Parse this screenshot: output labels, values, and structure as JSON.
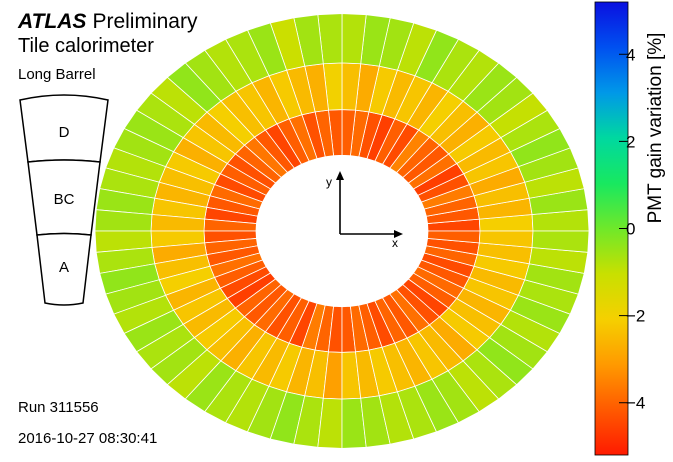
{
  "header": {
    "experiment": "ATLAS",
    "status": "Preliminary",
    "subtitle": "Tile calorimeter",
    "partition": "Long Barrel"
  },
  "run": {
    "label": "Run 311556",
    "timestamp": "2016-10-27 08:30:41"
  },
  "schematic": {
    "layers": [
      "D",
      "BC",
      "A"
    ]
  },
  "axes_indicator": {
    "x_label": "x",
    "y_label": "y"
  },
  "colorbar": {
    "title": "PMT gain variation [%]",
    "range": [
      -5.2,
      5.2
    ],
    "ticks": [
      4,
      2,
      0,
      -2,
      -4
    ],
    "tick_labels": [
      "4",
      "2",
      "0",
      "−2",
      "−4"
    ],
    "palette": [
      "#ff1a00",
      "#ff5a00",
      "#ff9a00",
      "#f5d000",
      "#c8e000",
      "#6fe82a",
      "#18e860",
      "#00d8a0",
      "#0098e8",
      "#0050f0",
      "#0a10e0"
    ]
  },
  "chart_data": {
    "type": "heatmap",
    "title": "",
    "value_label": "PMT gain variation [%]",
    "modules": 64,
    "layers": [
      "A",
      "BC",
      "D"
    ],
    "series": [
      {
        "name": "A",
        "values": [
          -4.5,
          -4.2,
          -4.0,
          -3.6,
          -4.3,
          -4.6,
          -3.8,
          -4.2,
          -4.0,
          -3.5,
          -4.4,
          -4.1,
          -4.6,
          -4.3,
          -3.9,
          -4.1,
          -4.2,
          -4.0,
          -4.3,
          -3.8,
          -4.1,
          -4.5,
          -4.2,
          -3.7,
          -4.0,
          -4.3,
          -4.1,
          -4.4,
          -3.9,
          -4.2,
          -4.5,
          -4.0,
          -4.3,
          -4.0,
          -4.2,
          -3.8,
          -4.1,
          -4.4,
          -4.6,
          -4.0,
          -4.2,
          -3.9,
          -4.3,
          -4.1,
          -4.5,
          -3.6,
          -4.0,
          -4.3,
          -4.2,
          -3.9,
          -4.1,
          -4.4,
          -4.0,
          -4.2,
          -3.8,
          -4.3,
          -4.5,
          -4.1,
          -3.9,
          -4.2,
          -4.4,
          -4.0,
          -4.3,
          -4.1
        ]
      },
      {
        "name": "BC",
        "values": [
          -2.1,
          -2.6,
          -2.4,
          -2.8,
          -2.3,
          -2.5,
          -2.2,
          -2.7,
          -2.4,
          -2.1,
          -2.6,
          -2.3,
          -2.5,
          -2.2,
          -2.8,
          -2.4,
          -2.0,
          -2.7,
          -2.5,
          -2.2,
          -2.6,
          -2.3,
          -2.4,
          -2.1,
          -2.5,
          -2.3,
          -2.7,
          -2.2,
          -2.4,
          -2.6,
          -2.3,
          -2.5,
          -2.2,
          -2.8,
          -2.4,
          -2.1,
          -2.6,
          -2.3,
          -2.5,
          -2.2,
          -2.4,
          -2.7,
          -2.3,
          -2.5,
          -2.2,
          -2.6,
          -2.4,
          -3.0,
          -2.3,
          -2.5,
          -2.2,
          -2.4,
          -2.6,
          -2.3,
          -2.5,
          -2.8,
          -2.2,
          -2.4,
          -2.6,
          -2.3,
          -2.5,
          -2.2,
          -2.4,
          -2.3
        ]
      },
      {
        "name": "D",
        "values": [
          -0.8,
          -0.5,
          -0.9,
          -0.6,
          -0.4,
          -0.7,
          -1.0,
          -0.6,
          -0.5,
          -0.8,
          -0.7,
          -0.4,
          -0.9,
          -0.6,
          -0.5,
          -0.8,
          -0.7,
          -0.6,
          -1.1,
          -0.5,
          -0.7,
          -0.8,
          -0.6,
          -0.4,
          -0.9,
          -0.7,
          -0.5,
          -0.6,
          -0.8,
          -0.7,
          -0.5,
          -0.6,
          -0.9,
          -0.7,
          -0.4,
          -0.6,
          -0.8,
          -0.5,
          -0.7,
          -0.6,
          -0.9,
          -0.5,
          -0.7,
          -0.8,
          -0.6,
          -0.4,
          -0.7,
          -0.9,
          -0.5,
          -0.6,
          -0.8,
          -0.7,
          -0.5,
          -0.6,
          -0.9,
          -0.7,
          -0.4,
          -0.6,
          -0.8,
          -0.5,
          -0.7,
          -0.6,
          -0.9,
          -0.7
        ]
      }
    ]
  }
}
